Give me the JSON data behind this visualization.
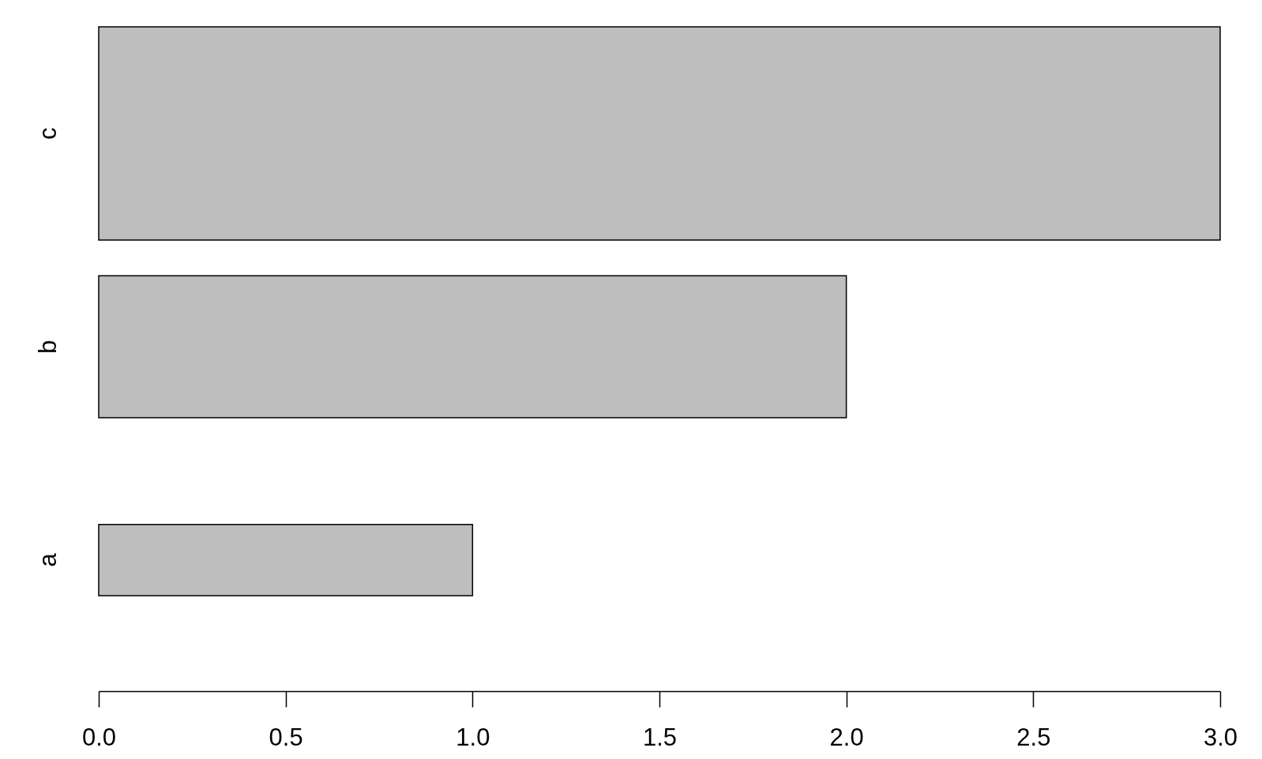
{
  "chart_data": {
    "type": "bar",
    "orientation": "horizontal",
    "categories": [
      "c",
      "b",
      "a"
    ],
    "values": [
      3,
      2,
      1
    ],
    "color": "#bebebe",
    "xlim": [
      0,
      3
    ],
    "xticks": [
      {
        "value": 0,
        "label": "0.0"
      },
      0.5,
      {
        "value": 1,
        "label": "1.0"
      },
      1.5,
      {
        "value": 2,
        "label": "2.0"
      },
      2.5,
      {
        "value": 3,
        "label": "3.0"
      }
    ]
  }
}
